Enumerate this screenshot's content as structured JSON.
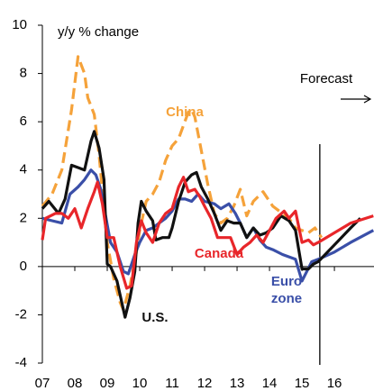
{
  "chart_data": {
    "type": "line",
    "axis_label": "y/y % change",
    "forecast_label": "Forecast",
    "forecast_x": 2015.55,
    "xlim": [
      2007,
      2017.22
    ],
    "xticks": [
      {
        "value": 2007,
        "label": "07"
      },
      {
        "value": 2008,
        "label": "08"
      },
      {
        "value": 2009,
        "label": "09"
      },
      {
        "value": 2010,
        "label": "10"
      },
      {
        "value": 2011,
        "label": "11"
      },
      {
        "value": 2012,
        "label": "12"
      },
      {
        "value": 2013,
        "label": "13"
      },
      {
        "value": 2014,
        "label": "14"
      },
      {
        "value": 2015,
        "label": "15"
      },
      {
        "value": 2016,
        "label": "16"
      }
    ],
    "ylim": [
      -4,
      10
    ],
    "yticks": [
      -4,
      -2,
      0,
      2,
      4,
      6,
      8,
      10
    ],
    "series": [
      {
        "name": "China",
        "color": "#f5a23a",
        "dashed": true,
        "x": [
          2007,
          2007.3,
          2007.6,
          2007.9,
          2008.1,
          2008.3,
          2008.4,
          2008.6,
          2008.75,
          2008.9,
          2009.0,
          2009.2,
          2009.4,
          2009.5,
          2009.7,
          2009.9,
          2010.0,
          2010.2,
          2010.4,
          2010.6,
          2010.8,
          2011.0,
          2011.2,
          2011.5,
          2011.6,
          2011.7,
          2011.8,
          2012.0,
          2012.1,
          2012.3,
          2012.5,
          2012.7,
          2012.9,
          2013.1,
          2013.3,
          2013.5,
          2013.8,
          2014.1,
          2014.3,
          2014.6,
          2014.8,
          2015.0,
          2015.2,
          2015.4,
          2015.6
        ],
        "values": [
          2.5,
          3.0,
          4.0,
          6.5,
          8.7,
          8.0,
          7.0,
          6.3,
          4.6,
          2.4,
          1.0,
          -0.5,
          -1.5,
          -1.8,
          -0.8,
          0.6,
          1.5,
          2.7,
          3.0,
          3.5,
          4.4,
          5.0,
          5.3,
          6.4,
          6.5,
          6.2,
          5.5,
          4.1,
          3.4,
          2.2,
          1.8,
          2.0,
          2.5,
          3.2,
          2.1,
          2.7,
          3.1,
          2.5,
          2.3,
          2.0,
          1.6,
          1.5,
          1.4,
          1.6,
          1.2
        ]
      },
      {
        "name": "U.S.",
        "color": "#111111",
        "x": [
          2007,
          2007.2,
          2007.5,
          2007.7,
          2007.9,
          2008.1,
          2008.3,
          2008.5,
          2008.6,
          2008.75,
          2008.9,
          2009.0,
          2009.1,
          2009.3,
          2009.45,
          2009.55,
          2009.7,
          2009.85,
          2009.95,
          2010.05,
          2010.2,
          2010.4,
          2010.5,
          2010.7,
          2010.9,
          2011.0,
          2011.2,
          2011.4,
          2011.6,
          2011.75,
          2011.9,
          2012.1,
          2012.3,
          2012.5,
          2012.7,
          2012.9,
          2013.1,
          2013.3,
          2013.5,
          2013.7,
          2013.9,
          2014.1,
          2014.35,
          2014.6,
          2014.8,
          2015.0,
          2015.2,
          2015.35,
          2015.5,
          2016.0,
          2016.5,
          2016.8
        ],
        "values": [
          2.4,
          2.7,
          2.2,
          2.8,
          4.2,
          4.1,
          4.0,
          5.2,
          5.6,
          4.9,
          3.6,
          0.1,
          0.0,
          -0.6,
          -1.5,
          -2.1,
          -1.3,
          -0.2,
          1.8,
          2.7,
          2.3,
          1.9,
          1.1,
          1.2,
          1.2,
          1.6,
          2.7,
          3.5,
          3.8,
          3.9,
          3.3,
          2.8,
          2.2,
          1.5,
          1.9,
          1.8,
          1.8,
          1.2,
          1.6,
          1.3,
          1.4,
          1.6,
          2.1,
          1.9,
          1.5,
          -0.1,
          -0.1,
          0.1,
          0.2,
          0.9,
          1.6,
          2.0
        ]
      },
      {
        "name": "Euro zone",
        "color": "#3a4fa8",
        "x": [
          2007,
          2007.3,
          2007.6,
          2007.85,
          2008.1,
          2008.3,
          2008.5,
          2008.65,
          2008.8,
          2008.95,
          2009.1,
          2009.3,
          2009.5,
          2009.65,
          2009.85,
          2010.0,
          2010.2,
          2010.4,
          2010.6,
          2010.8,
          2011.0,
          2011.2,
          2011.4,
          2011.6,
          2011.8,
          2012.0,
          2012.3,
          2012.5,
          2012.75,
          2012.95,
          2013.1,
          2013.3,
          2013.5,
          2013.7,
          2013.9,
          2014.1,
          2014.4,
          2014.6,
          2014.8,
          2015.0,
          2015.15,
          2015.3,
          2015.5,
          2016.0,
          2016.5,
          2017.2
        ],
        "values": [
          2.0,
          1.9,
          1.8,
          3.0,
          3.3,
          3.6,
          4.0,
          3.8,
          3.2,
          2.1,
          1.0,
          0.6,
          -0.2,
          -0.3,
          0.5,
          1.0,
          1.5,
          1.6,
          1.8,
          2.0,
          2.3,
          2.8,
          2.8,
          2.7,
          3.0,
          2.7,
          2.6,
          2.4,
          2.6,
          2.2,
          1.8,
          1.2,
          1.6,
          1.1,
          0.8,
          0.7,
          0.5,
          0.4,
          0.3,
          -0.6,
          -0.2,
          0.2,
          0.3,
          0.6,
          1.0,
          1.5
        ]
      },
      {
        "name": "Canada",
        "color": "#e8262a",
        "x": [
          2007,
          2007.1,
          2007.4,
          2007.6,
          2007.8,
          2008.0,
          2008.2,
          2008.4,
          2008.6,
          2008.7,
          2008.85,
          2009.0,
          2009.2,
          2009.4,
          2009.6,
          2009.75,
          2009.9,
          2010.05,
          2010.2,
          2010.4,
          2010.6,
          2010.8,
          2011.0,
          2011.2,
          2011.35,
          2011.5,
          2011.7,
          2011.85,
          2012.0,
          2012.2,
          2012.4,
          2012.6,
          2012.8,
          2013.0,
          2013.2,
          2013.4,
          2013.6,
          2013.8,
          2014.0,
          2014.2,
          2014.45,
          2014.6,
          2014.8,
          2015.0,
          2015.2,
          2015.35,
          2015.5,
          2016.0,
          2016.5,
          2017.2
        ],
        "values": [
          1.1,
          2.0,
          2.2,
          2.2,
          2.0,
          2.4,
          1.6,
          2.4,
          3.1,
          3.5,
          2.6,
          1.2,
          1.2,
          0.0,
          -0.9,
          -0.8,
          1.0,
          1.9,
          1.4,
          1.0,
          1.8,
          2.2,
          2.4,
          3.3,
          3.7,
          3.1,
          3.2,
          2.9,
          2.5,
          2.0,
          1.2,
          1.2,
          1.2,
          0.5,
          0.8,
          1.0,
          1.3,
          1.0,
          1.5,
          2.0,
          2.3,
          2.0,
          2.3,
          1.0,
          1.1,
          0.9,
          1.0,
          1.4,
          1.8,
          2.1
        ]
      }
    ]
  }
}
